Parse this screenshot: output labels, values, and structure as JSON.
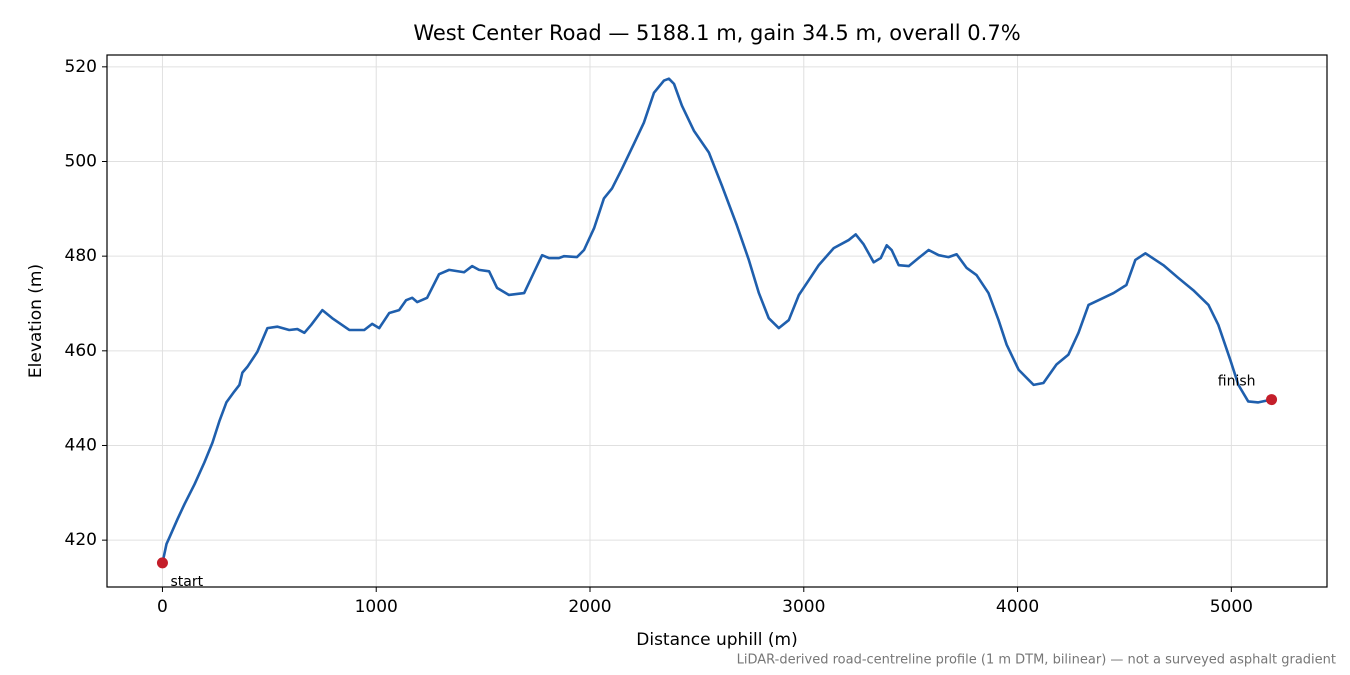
{
  "chart_data": {
    "type": "line",
    "title": "West Center Road — 5188.1 m, gain 34.5 m, overall 0.7%",
    "x_label": "Distance uphill (m)",
    "y_label": "Elevation (m)",
    "footnote": "LiDAR-derived road-centreline profile (1 m DTM, bilinear) — not a surveyed asphalt gradient",
    "grid": true,
    "xlim": [
      -259.4,
      5447.5
    ],
    "ylim": [
      410.1,
      522.5
    ],
    "xticks": [
      0,
      1000,
      2000,
      3000,
      4000,
      5000
    ],
    "yticks": [
      420,
      440,
      460,
      480,
      500,
      520
    ],
    "series": [
      {
        "color": "#1f5fad",
        "x": [
          0,
          19,
          33,
          70,
          103,
          150,
          196,
          234,
          266,
          299,
          336,
          360,
          374,
          397,
          444,
          491,
          537,
          593,
          631,
          664,
          696,
          748,
          794,
          874,
          944,
          981,
          1014,
          1061,
          1107,
          1140,
          1168,
          1192,
          1238,
          1294,
          1341,
          1411,
          1449,
          1481,
          1528,
          1565,
          1621,
          1692,
          1738,
          1776,
          1808,
          1855,
          1879,
          1939,
          1972,
          2019,
          2065,
          2103,
          2150,
          2206,
          2252,
          2299,
          2346,
          2369,
          2393,
          2430,
          2486,
          2556,
          2617,
          2687,
          2743,
          2790,
          2836,
          2883,
          2930,
          2977,
          3023,
          3070,
          3140,
          3210,
          3243,
          3280,
          3327,
          3360,
          3388,
          3411,
          3444,
          3491,
          3537,
          3584,
          3631,
          3677,
          3715,
          3762,
          3808,
          3864,
          3911,
          3949,
          4005,
          4075,
          4121,
          4182,
          4238,
          4285,
          4332,
          4379,
          4449,
          4509,
          4551,
          4598,
          4682,
          4752,
          4822,
          4893,
          4939,
          4995,
          5033,
          5079,
          5126,
          5188.1
        ],
        "values": [
          415.2,
          419.2,
          420.6,
          424.4,
          427.6,
          431.8,
          436.4,
          440.6,
          445.1,
          449.1,
          451.4,
          452.8,
          455.4,
          456.6,
          459.8,
          464.8,
          465.1,
          464.4,
          464.6,
          463.8,
          465.5,
          468.6,
          466.9,
          464.4,
          464.4,
          465.7,
          464.8,
          468.0,
          468.6,
          470.7,
          471.2,
          470.3,
          471.2,
          476.2,
          477.1,
          476.6,
          477.9,
          477.1,
          476.8,
          473.3,
          471.8,
          472.2,
          476.6,
          480.2,
          479.6,
          479.6,
          480.0,
          479.8,
          481.3,
          485.9,
          492.2,
          494.3,
          498.5,
          503.8,
          508.2,
          514.5,
          517.1,
          517.5,
          516.4,
          511.8,
          506.5,
          501.9,
          494.9,
          486.5,
          479.2,
          472.2,
          466.9,
          464.8,
          466.5,
          471.8,
          474.9,
          478.1,
          481.7,
          483.4,
          484.6,
          482.5,
          478.7,
          479.6,
          482.3,
          481.3,
          478.1,
          477.9,
          479.6,
          481.3,
          480.2,
          479.8,
          480.4,
          477.5,
          476.0,
          472.2,
          466.5,
          461.3,
          456.0,
          452.8,
          453.2,
          457.1,
          459.2,
          463.8,
          469.7,
          470.7,
          472.2,
          473.9,
          479.2,
          480.6,
          478.1,
          475.4,
          472.8,
          469.7,
          465.5,
          458.1,
          452.8,
          449.3,
          449.1,
          449.7
        ]
      }
    ],
    "annotations": [
      {
        "text": "start",
        "x": 0,
        "y": 415.2,
        "color": "#c41e2a"
      },
      {
        "text": "finish",
        "x": 5188.1,
        "y": 449.7,
        "color": "#c41e2a"
      }
    ]
  }
}
